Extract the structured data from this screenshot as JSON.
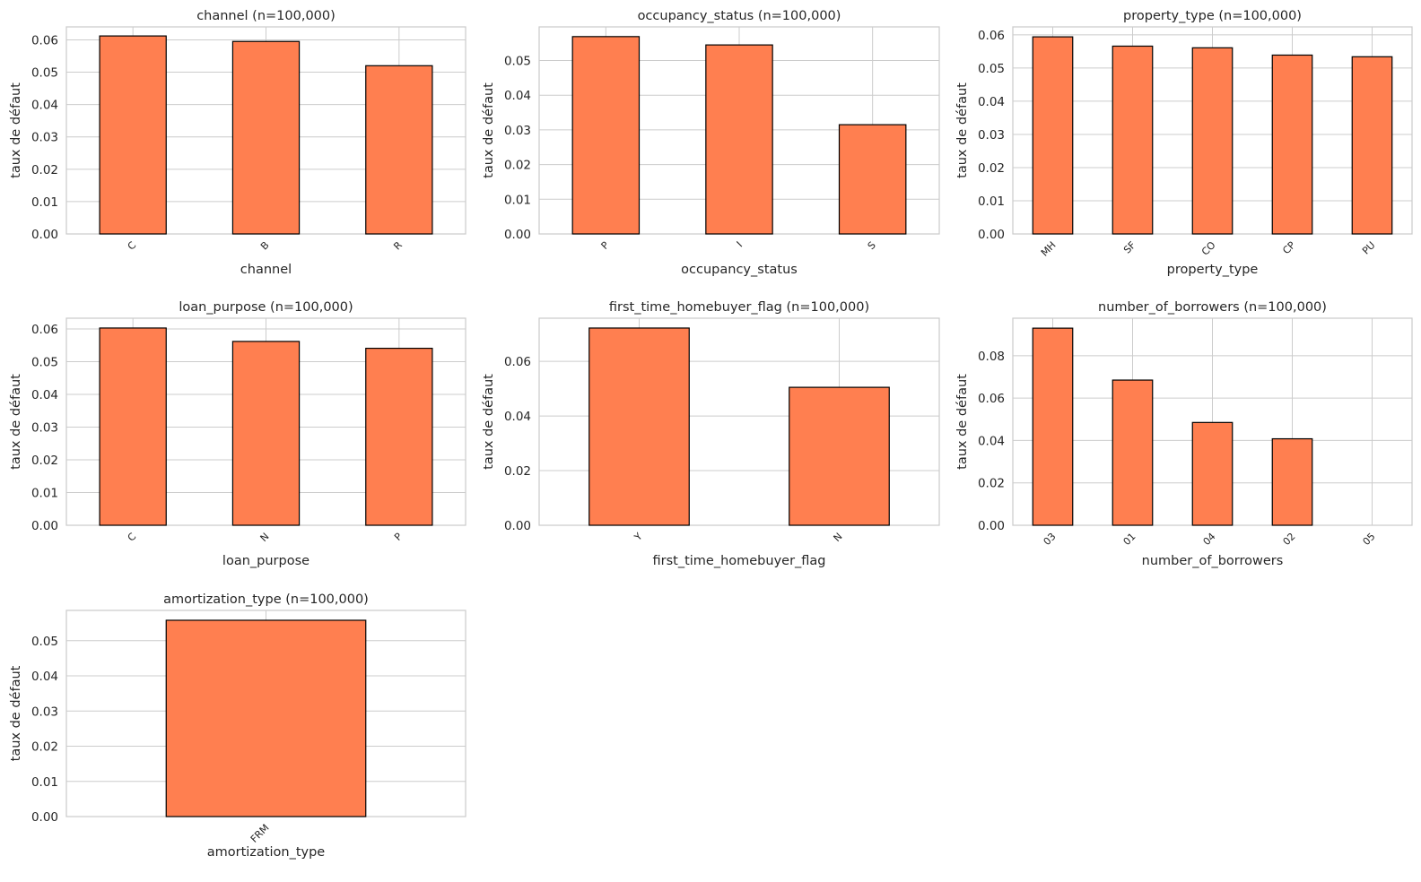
{
  "colors": {
    "bar": "#ff7f50",
    "bar_edge": "#000000",
    "grid": "#cccccc",
    "text": "#262626"
  },
  "chart_data": [
    {
      "type": "bar",
      "title": "channel (n=100,000)",
      "xlabel": "channel",
      "ylabel": "taux de défaut",
      "categories": [
        "C",
        "B",
        "R"
      ],
      "values": [
        0.0612,
        0.0595,
        0.052
      ],
      "ylim": [
        0,
        0.064
      ],
      "yticks": [
        "0.00",
        "0.01",
        "0.02",
        "0.03",
        "0.04",
        "0.05",
        "0.06"
      ],
      "grid": true
    },
    {
      "type": "bar",
      "title": "occupancy_status (n=100,000)",
      "xlabel": "occupancy_status",
      "ylabel": "taux de défaut",
      "categories": [
        "P",
        "I",
        "S"
      ],
      "values": [
        0.0569,
        0.0545,
        0.0315
      ],
      "ylim": [
        0,
        0.0597
      ],
      "yticks": [
        "0.00",
        "0.01",
        "0.02",
        "0.03",
        "0.04",
        "0.05"
      ],
      "grid": true
    },
    {
      "type": "bar",
      "title": "property_type (n=100,000)",
      "xlabel": "property_type",
      "ylabel": "taux de défaut",
      "categories": [
        "MH",
        "SF",
        "CO",
        "CP",
        "PU"
      ],
      "values": [
        0.0594,
        0.0566,
        0.0561,
        0.0539,
        0.0534
      ],
      "ylim": [
        0,
        0.0624
      ],
      "yticks": [
        "0.00",
        "0.01",
        "0.02",
        "0.03",
        "0.04",
        "0.05",
        "0.06"
      ],
      "grid": true
    },
    {
      "type": "bar",
      "title": "loan_purpose (n=100,000)",
      "xlabel": "loan_purpose",
      "ylabel": "taux de défaut",
      "categories": [
        "C",
        "N",
        "P"
      ],
      "values": [
        0.0603,
        0.0562,
        0.0541
      ],
      "ylim": [
        0,
        0.0633
      ],
      "yticks": [
        "0.00",
        "0.01",
        "0.02",
        "0.03",
        "0.04",
        "0.05",
        "0.06"
      ],
      "grid": true
    },
    {
      "type": "bar",
      "title": "first_time_homebuyer_flag (n=100,000)",
      "xlabel": "first_time_homebuyer_flag",
      "ylabel": "taux de défaut",
      "categories": [
        "Y",
        "N"
      ],
      "values": [
        0.0722,
        0.0505
      ],
      "ylim": [
        0,
        0.0758
      ],
      "yticks": [
        "0.00",
        "0.02",
        "0.04",
        "0.06"
      ],
      "grid": true
    },
    {
      "type": "bar",
      "title": "number_of_borrowers (n=100,000)",
      "xlabel": "number_of_borrowers",
      "ylabel": "taux de défaut",
      "categories": [
        "03",
        "01",
        "04",
        "02",
        "05"
      ],
      "values": [
        0.093,
        0.0685,
        0.0485,
        0.0408,
        0.0
      ],
      "ylim": [
        0,
        0.0977
      ],
      "yticks": [
        "0.00",
        "0.02",
        "0.04",
        "0.06",
        "0.08"
      ],
      "grid": true
    },
    {
      "type": "bar",
      "title": "amortization_type (n=100,000)",
      "xlabel": "amortization_type",
      "ylabel": "taux de défaut",
      "categories": [
        "FRM"
      ],
      "values": [
        0.0558
      ],
      "ylim": [
        0,
        0.0586
      ],
      "yticks": [
        "0.00",
        "0.01",
        "0.02",
        "0.03",
        "0.04",
        "0.05"
      ],
      "grid": true
    }
  ]
}
